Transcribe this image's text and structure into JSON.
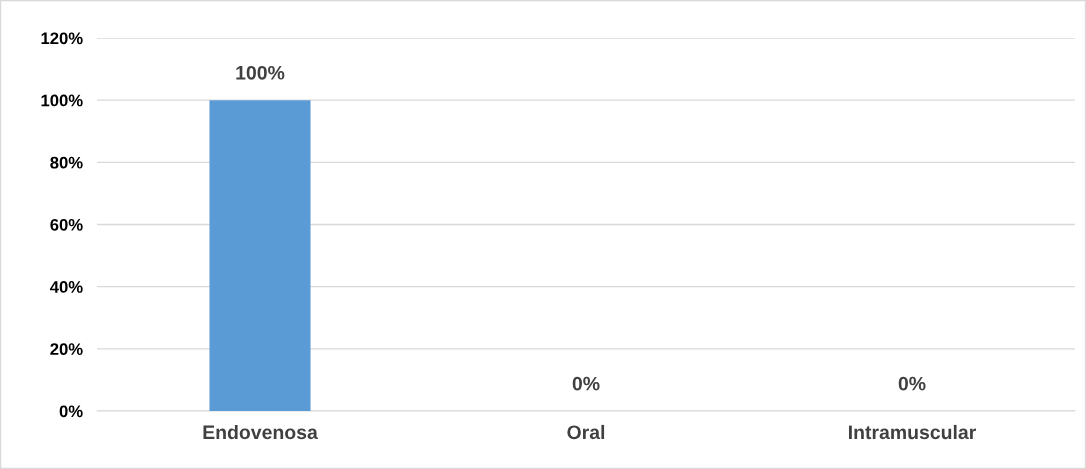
{
  "chart_data": {
    "type": "bar",
    "categories": [
      "Endovenosa",
      "Oral",
      "Intramuscular"
    ],
    "values": [
      100,
      0,
      0
    ],
    "color": "#5b9bd5",
    "value_labels": [
      "100%",
      "0%",
      "0%"
    ],
    "ylim": [
      0,
      120
    ],
    "yticks": [
      {
        "value": 0,
        "label": "0%"
      },
      {
        "value": 20,
        "label": "20%"
      },
      {
        "value": 40,
        "label": "40%"
      },
      {
        "value": 60,
        "label": "60%"
      },
      {
        "value": 80,
        "label": "80%"
      },
      {
        "value": 100,
        "label": "100%"
      },
      {
        "value": 120,
        "label": "120%"
      }
    ],
    "grid": "y",
    "legend": false
  }
}
